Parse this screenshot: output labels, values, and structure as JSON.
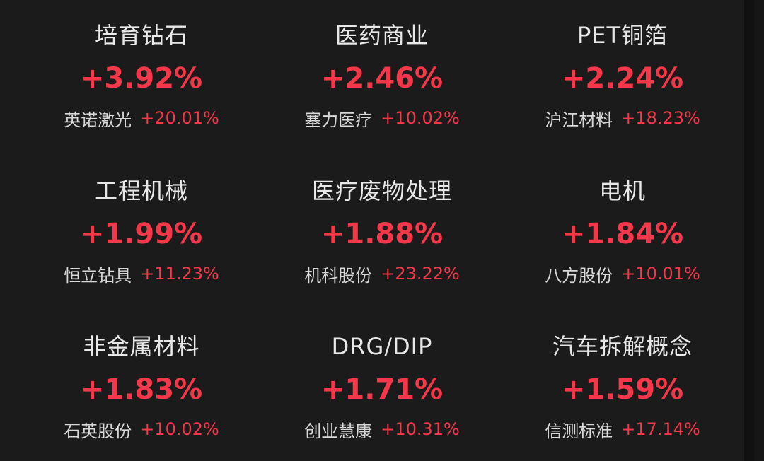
{
  "colors": {
    "background": "#1b1b1b",
    "text": "#e8e8e8",
    "up": "#f5374a"
  },
  "sectors": [
    {
      "name": "培育钻石",
      "change": "+3.92%",
      "leader": "英诺激光",
      "leader_change": "+20.01%"
    },
    {
      "name": "医药商业",
      "change": "+2.46%",
      "leader": "塞力医疗",
      "leader_change": "+10.02%"
    },
    {
      "name": "PET铜箔",
      "change": "+2.24%",
      "leader": "沪江材料",
      "leader_change": "+18.23%"
    },
    {
      "name": "工程机械",
      "change": "+1.99%",
      "leader": "恒立钻具",
      "leader_change": "+11.23%"
    },
    {
      "name": "医疗废物处理",
      "change": "+1.88%",
      "leader": "机科股份",
      "leader_change": "+23.22%"
    },
    {
      "name": "电机",
      "change": "+1.84%",
      "leader": "八方股份",
      "leader_change": "+10.01%"
    },
    {
      "name": "非金属材料",
      "change": "+1.83%",
      "leader": "石英股份",
      "leader_change": "+10.02%"
    },
    {
      "name": "DRG/DIP",
      "change": "+1.71%",
      "leader": "创业慧康",
      "leader_change": "+10.31%"
    },
    {
      "name": "汽车拆解概念",
      "change": "+1.59%",
      "leader": "信测标准",
      "leader_change": "+17.14%"
    }
  ]
}
